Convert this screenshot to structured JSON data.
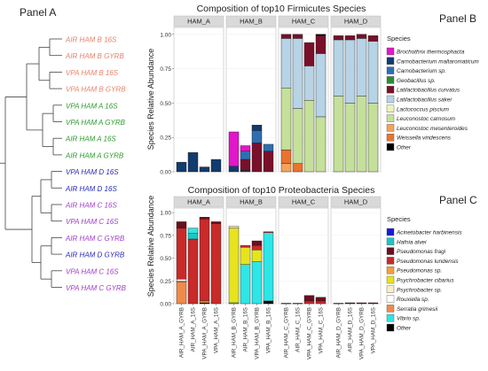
{
  "panel_a": {
    "label": "Panel A",
    "tips": [
      {
        "label": "AIR HAM B 16S",
        "color": "#e8826a"
      },
      {
        "label": "AIR HAM B GYRB",
        "color": "#e8826a"
      },
      {
        "label": "VPA HAM B 16S",
        "color": "#e8826a"
      },
      {
        "label": "VPA HAM B GYRB",
        "color": "#e8826a"
      },
      {
        "label": "VPA HAM A 16S",
        "color": "#2e9a2e"
      },
      {
        "label": "VPA HAM A GYRB",
        "color": "#2e9a2e"
      },
      {
        "label": "AIR HAM A 16S",
        "color": "#2e9a2e"
      },
      {
        "label": "AIR HAM A GYRB",
        "color": "#2e9a2e"
      },
      {
        "label": "VPA HAM D 16S",
        "color": "#2b2bb8"
      },
      {
        "label": "AIR HAM D 16S",
        "color": "#2b2bb8"
      },
      {
        "label": "AIR HAM C 16S",
        "color": "#a040c8"
      },
      {
        "label": "VPA HAM C 16S",
        "color": "#a040c8"
      },
      {
        "label": "AIR HAM C GYRB",
        "color": "#a040c8"
      },
      {
        "label": "AIR HAM D GYRB",
        "color": "#2b2bb8"
      },
      {
        "label": "VPA HAM C 16S",
        "color": "#a040c8"
      },
      {
        "label": "VPA HAM C GYRB",
        "color": "#a040c8"
      }
    ]
  },
  "panel_b": {
    "label": "Panel B"
  },
  "panel_c": {
    "label": "Panel C"
  },
  "chart_data": [
    {
      "type": "bar",
      "stacked": true,
      "title": "Composition of top10 Firmicutes Species",
      "ylabel": "Species Relative Abundance",
      "ylim": [
        0,
        1.05
      ],
      "yticks": [
        "0.00",
        "0.25",
        "0.50",
        "0.75",
        "1.00"
      ],
      "ytick_values": [
        0,
        0.25,
        0.5,
        0.75,
        1.0
      ],
      "facets": [
        "HAM_A",
        "HAM_B",
        "HAM_C",
        "HAM_D"
      ],
      "legend_title": "Species",
      "legend_position": "right",
      "legend": [
        {
          "name": "Brochothrix thermosphacta",
          "color": "#e316c9"
        },
        {
          "name": "Carnobacterium maltaromaticum",
          "color": "#123b6e"
        },
        {
          "name": "Carnobacterium sp.",
          "color": "#2d6fb2"
        },
        {
          "name": "Geobacillus sp.",
          "color": "#2e8b3a"
        },
        {
          "name": "Latilactobacillus curvatus",
          "color": "#7a0f2a"
        },
        {
          "name": "Latilactobacillus sakei",
          "color": "#b7d3e6"
        },
        {
          "name": "Lactococcus piscium",
          "color": "#eef3b8"
        },
        {
          "name": "Leuconostoc carnosum",
          "color": "#c5e09a"
        },
        {
          "name": "Leuconostoc mesenteroides",
          "color": "#f5a25a"
        },
        {
          "name": "Weissella viridescens",
          "color": "#e8742e"
        },
        {
          "name": "Other",
          "color": "#000000"
        }
      ],
      "bars": [
        {
          "facet": "HAM_A",
          "segments": [
            {
              "species": "Carnobacterium maltaromaticum",
              "value": 0.07
            }
          ]
        },
        {
          "facet": "HAM_A",
          "segments": [
            {
              "species": "Carnobacterium maltaromaticum",
              "value": 0.14
            }
          ]
        },
        {
          "facet": "HAM_A",
          "segments": [
            {
              "species": "Carnobacterium maltaromaticum",
              "value": 0.035
            }
          ]
        },
        {
          "facet": "HAM_A",
          "segments": [
            {
              "species": "Carnobacterium maltaromaticum",
              "value": 0.09
            }
          ]
        },
        {
          "facet": "HAM_B",
          "segments": [
            {
              "species": "Carnobacterium maltaromaticum",
              "value": 0.04
            },
            {
              "species": "Brochothrix thermosphacta",
              "value": 0.25
            }
          ]
        },
        {
          "facet": "HAM_B",
          "segments": [
            {
              "species": "Carnobacterium maltaromaticum",
              "value": 0.01
            },
            {
              "species": "Latilactobacillus curvatus",
              "value": 0.08
            },
            {
              "species": "Carnobacterium sp.",
              "value": 0.06
            },
            {
              "species": "Brochothrix thermosphacta",
              "value": 0.04
            }
          ]
        },
        {
          "facet": "HAM_B",
          "segments": [
            {
              "species": "Latilactobacillus curvatus",
              "value": 0.21
            },
            {
              "species": "Carnobacterium sp.",
              "value": 0.09
            },
            {
              "species": "Carnobacterium maltaromaticum",
              "value": 0.04
            }
          ]
        },
        {
          "facet": "HAM_B",
          "segments": [
            {
              "species": "Latilactobacillus curvatus",
              "value": 0.15
            },
            {
              "species": "Carnobacterium sp.",
              "value": 0.05
            }
          ]
        },
        {
          "facet": "HAM_C",
          "segments": [
            {
              "species": "Leuconostoc mesenteroides",
              "value": 0.06
            },
            {
              "species": "Weissella viridescens",
              "value": 0.1
            },
            {
              "species": "Leuconostoc carnosum",
              "value": 0.45
            },
            {
              "species": "Latilactobacillus sakei",
              "value": 0.36
            },
            {
              "species": "Latilactobacillus curvatus",
              "value": 0.03
            }
          ]
        },
        {
          "facet": "HAM_C",
          "segments": [
            {
              "species": "Weissella viridescens",
              "value": 0.06
            },
            {
              "species": "Leuconostoc carnosum",
              "value": 0.4
            },
            {
              "species": "Latilactobacillus sakei",
              "value": 0.51
            },
            {
              "species": "Latilactobacillus curvatus",
              "value": 0.03
            }
          ]
        },
        {
          "facet": "HAM_C",
          "segments": [
            {
              "species": "Leuconostoc carnosum",
              "value": 0.52
            },
            {
              "species": "Latilactobacillus sakei",
              "value": 0.25
            },
            {
              "species": "Latilactobacillus curvatus",
              "value": 0.17
            }
          ]
        },
        {
          "facet": "HAM_C",
          "segments": [
            {
              "species": "Leuconostoc carnosum",
              "value": 0.4
            },
            {
              "species": "Latilactobacillus sakei",
              "value": 0.46
            },
            {
              "species": "Latilactobacillus curvatus",
              "value": 0.13
            },
            {
              "species": "Other",
              "value": 0.01
            }
          ]
        },
        {
          "facet": "HAM_D",
          "segments": [
            {
              "species": "Leuconostoc carnosum",
              "value": 0.55
            },
            {
              "species": "Latilactobacillus sakei",
              "value": 0.41
            },
            {
              "species": "Latilactobacillus curvatus",
              "value": 0.03
            }
          ]
        },
        {
          "facet": "HAM_D",
          "segments": [
            {
              "species": "Leuconostoc carnosum",
              "value": 0.5
            },
            {
              "species": "Latilactobacillus sakei",
              "value": 0.46
            },
            {
              "species": "Latilactobacillus curvatus",
              "value": 0.03
            }
          ]
        },
        {
          "facet": "HAM_D",
          "segments": [
            {
              "species": "Leuconostoc carnosum",
              "value": 0.55
            },
            {
              "species": "Latilactobacillus sakei",
              "value": 0.42
            },
            {
              "species": "Latilactobacillus curvatus",
              "value": 0.03
            }
          ]
        },
        {
          "facet": "HAM_D",
          "segments": [
            {
              "species": "Leuconostoc carnosum",
              "value": 0.5
            },
            {
              "species": "Latilactobacillus sakei",
              "value": 0.45
            },
            {
              "species": "Latilactobacillus curvatus",
              "value": 0.04
            }
          ]
        }
      ]
    },
    {
      "type": "bar",
      "stacked": true,
      "title": "Composition of top10 Proteobacteria Species",
      "ylabel": "Species Relative Abundance",
      "ylim": [
        0,
        1.05
      ],
      "yticks": [
        "0.00",
        "0.25",
        "0.50",
        "0.75",
        "1.00"
      ],
      "ytick_values": [
        0,
        0.25,
        0.5,
        0.75,
        1.0
      ],
      "facets": [
        "HAM_A",
        "HAM_B",
        "HAM_C",
        "HAM_D"
      ],
      "categories": [
        "AIR_HAM_A_GYRB",
        "AIR_HAM_A_16S",
        "VPA_HAM_A_GYRB",
        "VPA_HAM_A_16S",
        "AIR_HAM_B_GYRB",
        "AIR_HAM_B_16S",
        "VPA_HAM_B_GYRB",
        "VPA_HAM_B_16S",
        "AIR_HAM_C_GYRB",
        "AIR_HAM_C_16S",
        "VPA_HAM_C_GYRB",
        "VPA_HAM_C_16S",
        "AIR_HAM_D_GYRB",
        "AIR_HAM_D_16S",
        "VPA_HAM_D_GYRB",
        "VPA_HAM_D_16S"
      ],
      "legend_title": "Species",
      "legend_position": "right",
      "legend": [
        {
          "name": "Acinetobacter harbinensis",
          "color": "#1a1adb"
        },
        {
          "name": "Hafnia alvei",
          "color": "#22c4c4"
        },
        {
          "name": "Pseudomonas fragi",
          "color": "#6b0f1f"
        },
        {
          "name": "Pseudomonas lundensis",
          "color": "#c92a2a"
        },
        {
          "name": "Pseudomonas sp.",
          "color": "#f2a03c"
        },
        {
          "name": "Psychrobacter cibarius",
          "color": "#e7e41e"
        },
        {
          "name": "Psychrobacter sp.",
          "color": "#f5f0c5"
        },
        {
          "name": "Rouxiella sp.",
          "color": "#ffffff"
        },
        {
          "name": "Serratia grimesii",
          "color": "#f08a4b"
        },
        {
          "name": "Vibrio sp.",
          "color": "#2ee6e6"
        },
        {
          "name": "Other",
          "color": "#000000"
        }
      ],
      "bars": [
        {
          "facet": "HAM_A",
          "segments": [
            {
              "species": "Serratia grimesii",
              "value": 0.24
            },
            {
              "species": "Psychrobacter sp.",
              "value": 0.01
            },
            {
              "species": "Rouxiella sp.",
              "value": 0.02
            },
            {
              "species": "Pseudomonas lundensis",
              "value": 0.56
            },
            {
              "species": "Pseudomonas fragi",
              "value": 0.07
            }
          ]
        },
        {
          "facet": "HAM_A",
          "segments": [
            {
              "species": "Pseudomonas lundensis",
              "value": 0.71
            },
            {
              "species": "Hafnia alvei",
              "value": 0.06
            },
            {
              "species": "Vibrio sp.",
              "value": 0.06
            }
          ]
        },
        {
          "facet": "HAM_A",
          "segments": [
            {
              "species": "Other",
              "value": 0.01
            },
            {
              "species": "Pseudomonas sp.",
              "value": 0.02
            },
            {
              "species": "Pseudomonas lundensis",
              "value": 0.9
            },
            {
              "species": "Pseudomonas fragi",
              "value": 0.02
            }
          ]
        },
        {
          "facet": "HAM_A",
          "segments": [
            {
              "species": "Pseudomonas lundensis",
              "value": 0.88
            },
            {
              "species": "Pseudomonas fragi",
              "value": 0.02
            }
          ]
        },
        {
          "facet": "HAM_B",
          "segments": [
            {
              "species": "Vibrio sp.",
              "value": 0.01
            },
            {
              "species": "Psychrobacter cibarius",
              "value": 0.82
            },
            {
              "species": "Psychrobacter sp.",
              "value": 0.02
            }
          ]
        },
        {
          "facet": "HAM_B",
          "segments": [
            {
              "species": "Vibrio sp.",
              "value": 0.43
            },
            {
              "species": "Psychrobacter cibarius",
              "value": 0.19
            },
            {
              "species": "Pseudomonas lundensis",
              "value": 0.02
            }
          ]
        },
        {
          "facet": "HAM_B",
          "segments": [
            {
              "species": "Vibrio sp.",
              "value": 0.46
            },
            {
              "species": "Psychrobacter cibarius",
              "value": 0.13
            },
            {
              "species": "Pseudomonas lundensis",
              "value": 0.05
            },
            {
              "species": "Pseudomonas fragi",
              "value": 0.05
            }
          ]
        },
        {
          "facet": "HAM_B",
          "segments": [
            {
              "species": "Other",
              "value": 0.03
            },
            {
              "species": "Vibrio sp.",
              "value": 0.75
            },
            {
              "species": "Pseudomonas lundensis",
              "value": 0.01
            }
          ]
        },
        {
          "facet": "HAM_C",
          "segments": [
            {
              "species": "Other",
              "value": 0.005
            }
          ]
        },
        {
          "facet": "HAM_C",
          "segments": [
            {
              "species": "Other",
              "value": 0.005
            }
          ]
        },
        {
          "facet": "HAM_C",
          "segments": [
            {
              "species": "Pseudomonas lundensis",
              "value": 0.03
            },
            {
              "species": "Pseudomonas fragi",
              "value": 0.06
            }
          ]
        },
        {
          "facet": "HAM_C",
          "segments": [
            {
              "species": "Pseudomonas lundensis",
              "value": 0.03
            },
            {
              "species": "Pseudomonas fragi",
              "value": 0.04
            }
          ]
        },
        {
          "facet": "HAM_D",
          "segments": [
            {
              "species": "Other",
              "value": 0.005
            }
          ]
        },
        {
          "facet": "HAM_D",
          "segments": [
            {
              "species": "Pseudomonas fragi",
              "value": 0.01
            }
          ]
        },
        {
          "facet": "HAM_D",
          "segments": [
            {
              "species": "Pseudomonas fragi",
              "value": 0.01
            }
          ]
        },
        {
          "facet": "HAM_D",
          "segments": [
            {
              "species": "Pseudomonas fragi",
              "value": 0.01
            }
          ]
        }
      ]
    }
  ]
}
